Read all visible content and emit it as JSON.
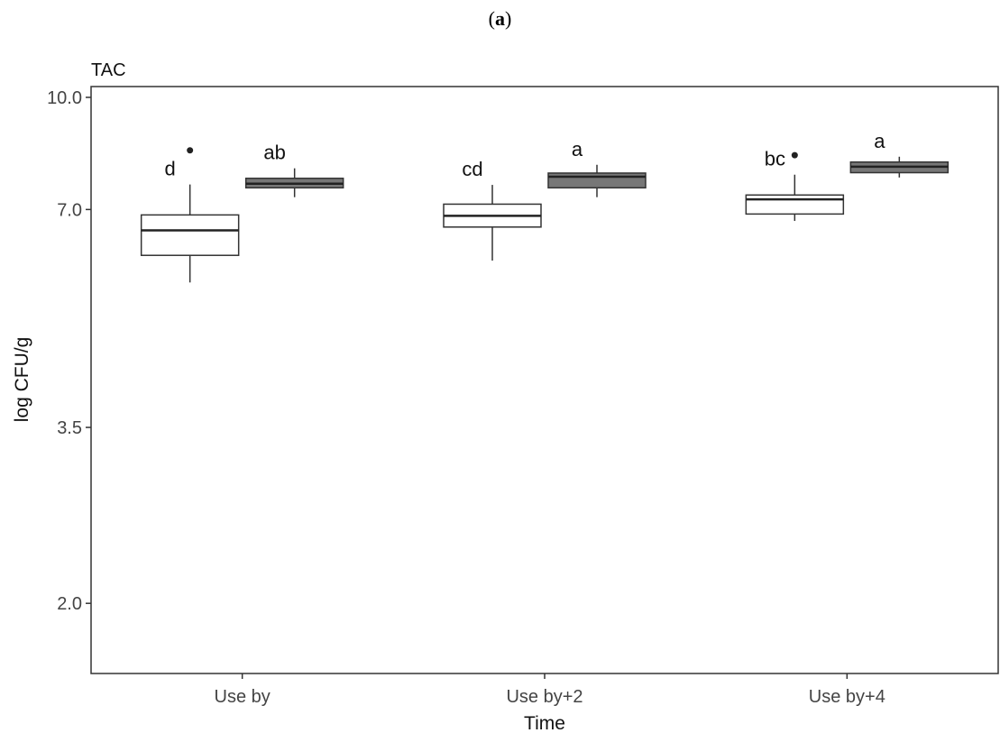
{
  "panel_label": {
    "open": "(",
    "letter": "a",
    "close": ")"
  },
  "chart_data": {
    "type": "box",
    "title": "TAC",
    "xlabel": "Time",
    "ylabel": "log CFU/g",
    "ylim": [
      1.6,
      10.35
    ],
    "yticks": [
      2.0,
      3.5,
      7.0,
      10.0
    ],
    "ytick_labels": [
      "2.0",
      "3.5",
      "7.0",
      "10.0"
    ],
    "y_scale": "log",
    "grid": false,
    "categories": [
      "Use by",
      "Use by+2",
      "Use by+4"
    ],
    "series": [
      {
        "fill": "#ffffff",
        "boxes": [
          {
            "category": "Use by",
            "whisker_low": 5.55,
            "q1": 6.05,
            "median": 6.55,
            "q3": 6.88,
            "whisker_high": 7.58,
            "outliers": [
              8.45
            ],
            "letter": "d"
          },
          {
            "category": "Use by+2",
            "whisker_low": 5.95,
            "q1": 6.62,
            "median": 6.86,
            "q3": 7.12,
            "whisker_high": 7.57,
            "outliers": [],
            "letter": "cd"
          },
          {
            "category": "Use by+4",
            "whisker_low": 6.75,
            "q1": 6.9,
            "median": 7.23,
            "q3": 7.33,
            "whisker_high": 7.82,
            "outliers": [
              8.32
            ],
            "letter": "bc"
          }
        ]
      },
      {
        "fill": "#777777",
        "boxes": [
          {
            "category": "Use by",
            "whisker_low": 7.28,
            "q1": 7.5,
            "median": 7.6,
            "q3": 7.73,
            "whisker_high": 7.98,
            "outliers": [],
            "letter": "ab"
          },
          {
            "category": "Use by+2",
            "whisker_low": 7.28,
            "q1": 7.5,
            "median": 7.77,
            "q3": 7.86,
            "whisker_high": 8.07,
            "outliers": [],
            "letter": "a"
          },
          {
            "category": "Use by+4",
            "whisker_low": 7.75,
            "q1": 7.87,
            "median": 8.02,
            "q3": 8.14,
            "whisker_high": 8.28,
            "outliers": [],
            "letter": "a"
          }
        ]
      }
    ]
  }
}
